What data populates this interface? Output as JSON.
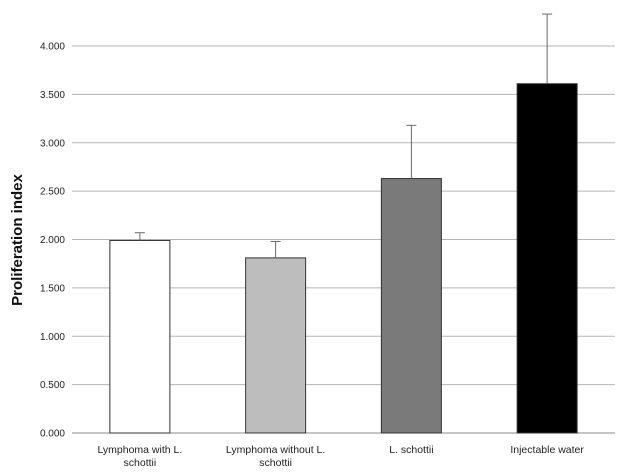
{
  "chart_data": {
    "type": "bar",
    "title": "",
    "xlabel": "",
    "ylabel": "Proliferation index",
    "ylim": [
      0,
      4
    ],
    "yticks": [
      "0.000",
      "0.500",
      "1.000",
      "1.500",
      "2.000",
      "2.500",
      "3.000",
      "3.500",
      "4.000"
    ],
    "grid": true,
    "categories": [
      {
        "lines": [
          "Lymphoma with   L.",
          "schottii"
        ]
      },
      {
        "lines": [
          "Lymphoma without L.",
          "schottii"
        ]
      },
      {
        "lines": [
          "L. schottii"
        ]
      },
      {
        "lines": [
          "Injectable water"
        ]
      }
    ],
    "values": [
      1.99,
      1.81,
      2.63,
      3.61
    ],
    "errors": [
      0.08,
      0.17,
      0.55,
      0.72
    ],
    "colors": [
      "#ffffff",
      "#bdbdbd",
      "#7a7a7a",
      "#000000"
    ]
  }
}
